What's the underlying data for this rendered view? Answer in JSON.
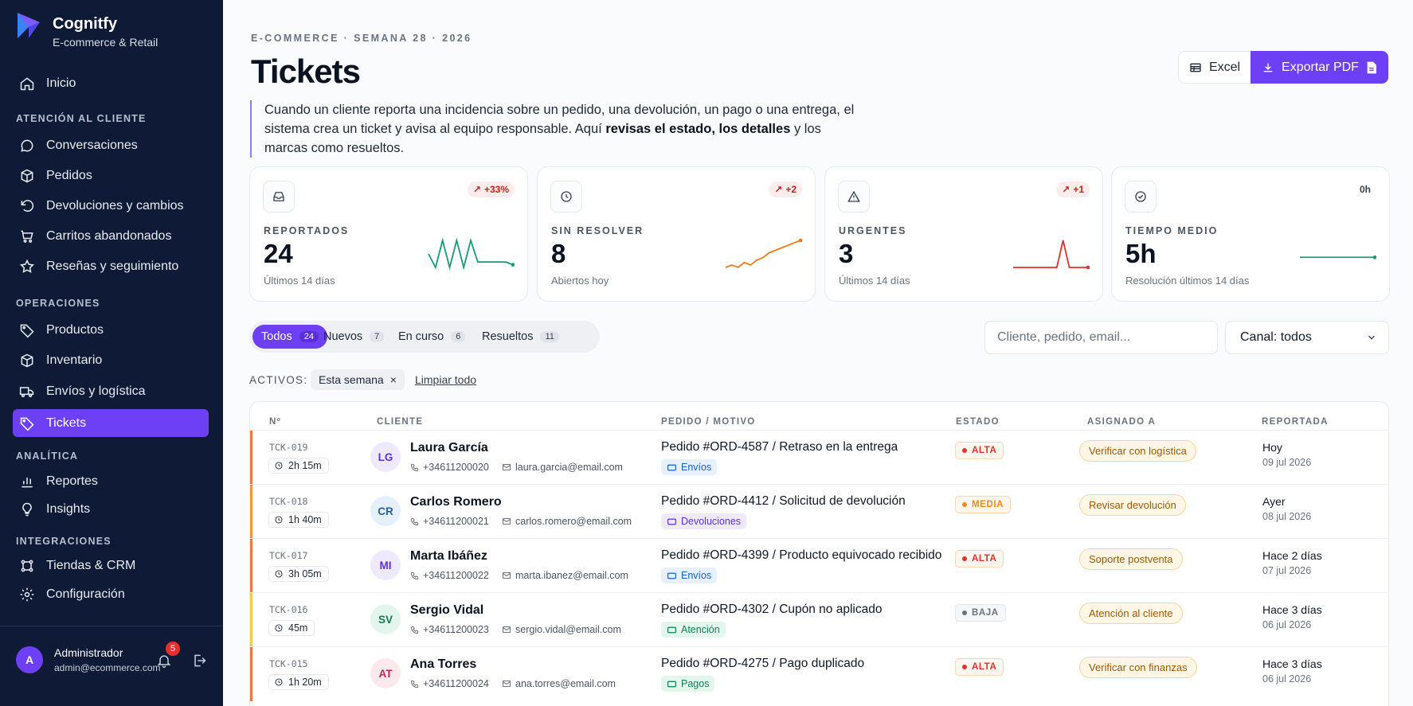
{
  "brand": {
    "name": "Cognitfy",
    "subtitle": "E-commerce & Retail"
  },
  "nav": {
    "home": "Inicio",
    "sections": {
      "attention": "ATENCIÓN AL CLIENTE",
      "operations": "OPERACIONES",
      "analytics": "ANALÍTICA",
      "integrations": "INTEGRACIONES"
    },
    "attention": [
      "Conversaciones",
      "Pedidos",
      "Devoluciones y cambios",
      "Carritos abandonados",
      "Reseñas y seguimiento"
    ],
    "operations": [
      "Productos",
      "Inventario",
      "Envíos y logística",
      "Tickets"
    ],
    "analytics": [
      "Reportes",
      "Insights"
    ],
    "integrations": [
      "Tiendas & CRM",
      "Configuración"
    ]
  },
  "user": {
    "initial": "A",
    "name": "Administrador",
    "email": "admin@ecommerce.com",
    "notifications": "5"
  },
  "header": {
    "eyebrow": "E-COMMERCE · SEMANA 28 · 2026",
    "title": "Tickets",
    "excel_label": "Excel",
    "pdf_label": "Exportar PDF"
  },
  "description": {
    "part1": "Cuando un cliente reporta una incidencia sobre un pedido, una devolución, un pago o una entrega, el sistema crea un ticket y avisa al equipo responsable. Aquí ",
    "bold": "revisas el estado, los detalles",
    "part2": " y los marcas como resueltos."
  },
  "kpis": [
    {
      "label": "REPORTADOS",
      "value": "24",
      "sub": "Últimos 14 días",
      "delta": "+33%",
      "spark_color": "#1a9a78",
      "spark": [
        6,
        1,
        11,
        1,
        11,
        1,
        11,
        3,
        3,
        3,
        3,
        3,
        2
      ]
    },
    {
      "label": "SIN RESOLVER",
      "value": "8",
      "sub": "Abiertos hoy",
      "delta": "+2",
      "spark_color": "#ef7a1a",
      "spark": [
        3,
        4,
        3,
        5,
        4,
        6,
        7,
        9,
        10,
        11,
        12,
        13,
        14
      ]
    },
    {
      "label": "URGENTES",
      "value": "3",
      "sub": "Últimos 14 días",
      "delta": "+1",
      "spark_color": "#e0312d",
      "spark": [
        1,
        1,
        1,
        1,
        1,
        1,
        1,
        1,
        9,
        1,
        1,
        1,
        1
      ]
    },
    {
      "label": "TIEMPO MEDIO",
      "value": "5h",
      "sub": "Resolución últimos 14 días",
      "delta": "0h",
      "spark_color": "#1a9a78",
      "spark": [
        5,
        5,
        5,
        5,
        5,
        5,
        5,
        5,
        5,
        5,
        5,
        5,
        5
      ]
    }
  ],
  "tabs": [
    {
      "label": "Todos",
      "count": "24"
    },
    {
      "label": "Nuevos",
      "count": "7"
    },
    {
      "label": "En curso",
      "count": "6"
    },
    {
      "label": "Resueltos",
      "count": "11"
    }
  ],
  "search": {
    "placeholder": "Cliente, pedido, email..."
  },
  "channel": {
    "value": "Canal: todos"
  },
  "active_filters": {
    "label": "ACTIVOS:",
    "chip": "Esta semana",
    "clear": "Limpiar todo"
  },
  "table": {
    "headers": [
      "Nº",
      "CLIENTE",
      "PEDIDO / MOTIVO",
      "ESTADO",
      "ASIGNADO A",
      "REPORTADA"
    ],
    "rows": [
      {
        "id": "TCK-019",
        "duration": "2h 15m",
        "initials": "LG",
        "name": "Laura García",
        "phone": "+34611200020",
        "email": "laura.garcia@email.com",
        "order": "Pedido #ORD-4587 / Retraso en la entrega",
        "tag": "Envíos",
        "status": "ALTA",
        "assigned": "Verificar con logística",
        "date1": "Hoy",
        "date2": "09 jul 2026"
      },
      {
        "id": "TCK-018",
        "duration": "1h 40m",
        "initials": "CR",
        "name": "Carlos Romero",
        "phone": "+34611200021",
        "email": "carlos.romero@email.com",
        "order": "Pedido #ORD-4412 / Solicitud de devolución",
        "tag": "Devoluciones",
        "status": "MEDIA",
        "assigned": "Revisar devolución",
        "date1": "Ayer",
        "date2": "08 jul 2026"
      },
      {
        "id": "TCK-017",
        "duration": "3h 05m",
        "initials": "MI",
        "name": "Marta Ibáñez",
        "phone": "+34611200022",
        "email": "marta.ibanez@email.com",
        "order": "Pedido #ORD-4399 / Producto equivocado recibido",
        "tag": "Envíos",
        "status": "ALTA",
        "assigned": "Soporte postventa",
        "date1": "Hace 2 días",
        "date2": "07 jul 2026"
      },
      {
        "id": "TCK-016",
        "duration": "45m",
        "initials": "SV",
        "name": "Sergio Vidal",
        "phone": "+34611200023",
        "email": "sergio.vidal@email.com",
        "order": "Pedido #ORD-4302 / Cupón no aplicado",
        "tag": "Atención",
        "status": "BAJA",
        "assigned": "Atención al cliente",
        "date1": "Hace 3 días",
        "date2": "06 jul 2026"
      },
      {
        "id": "TCK-015",
        "duration": "1h 20m",
        "initials": "AT",
        "name": "Ana Torres",
        "phone": "+34611200024",
        "email": "ana.torres@email.com",
        "order": "Pedido #ORD-4275 / Pago duplicado",
        "tag": "Pagos",
        "status": "ALTA",
        "assigned": "Verificar con finanzas",
        "date1": "Hace 3 días",
        "date2": "06 jul 2026"
      }
    ]
  },
  "colors": {
    "accent": "#6d3ff5",
    "sidebar": "#0f1a36",
    "alta": "#e0312d",
    "media": "#ef8a1a",
    "baja": "#6b7280"
  }
}
